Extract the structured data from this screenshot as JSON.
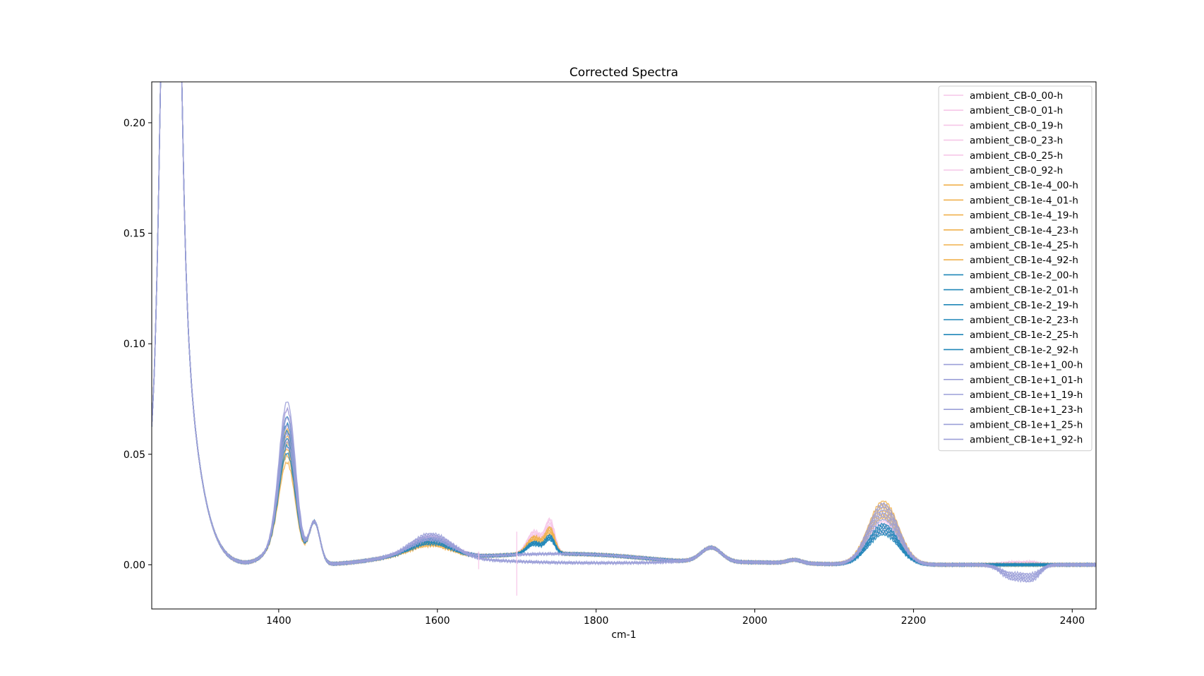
{
  "chart_data": {
    "type": "line",
    "title": "Corrected Spectra",
    "xlabel": "cm-1",
    "ylabel": "",
    "xlim": [
      1240,
      2430
    ],
    "ylim": [
      -0.02,
      0.2185
    ],
    "xticks": [
      1400,
      1600,
      1800,
      2000,
      2200,
      2400
    ],
    "yticks": [
      0.0,
      0.05,
      0.1,
      0.15,
      0.2
    ],
    "xtick_labels": [
      "1400",
      "1600",
      "1800",
      "2000",
      "2200",
      "2400"
    ],
    "ytick_labels": [
      "0.00",
      "0.05",
      "0.10",
      "0.15",
      "0.20"
    ],
    "grid": false,
    "legend_position": "top-right",
    "groups": [
      {
        "color": "#f6c6e8",
        "s1410": 0.058,
        "s1595": 0.009,
        "s2160": 0.017,
        "bump1720": 0.013,
        "s2330": 0.001,
        "names": [
          "ambient_CB-0_00-h",
          "ambient_CB-0_01-h",
          "ambient_CB-0_19-h",
          "ambient_CB-0_23-h",
          "ambient_CB-0_25-h",
          "ambient_CB-0_92-h"
        ]
      },
      {
        "color": "#f0b04c",
        "s1410": 0.05,
        "s1595": 0.007,
        "s2160": 0.025,
        "bump1720": 0.01,
        "s2330": 0.0,
        "names": [
          "ambient_CB-1e-4_00-h",
          "ambient_CB-1e-4_01-h",
          "ambient_CB-1e-4_19-h",
          "ambient_CB-1e-4_23-h",
          "ambient_CB-1e-4_25-h",
          "ambient_CB-1e-4_92-h"
        ]
      },
      {
        "color": "#1f86b8",
        "s1410": 0.055,
        "s1595": 0.008,
        "s2160": 0.016,
        "bump1720": 0.007,
        "s2330": 0.0,
        "names": [
          "ambient_CB-1e-2_00-h",
          "ambient_CB-1e-2_01-h",
          "ambient_CB-1e-2_19-h",
          "ambient_CB-1e-2_23-h",
          "ambient_CB-1e-2_25-h",
          "ambient_CB-1e-2_92-h"
        ]
      },
      {
        "color": "#9b9fd8",
        "s1410": 0.061,
        "s1595": 0.01,
        "s2160": 0.024,
        "bump1720": 0.0,
        "s2330": -0.006,
        "names": [
          "ambient_CB-1e+1_00-h",
          "ambient_CB-1e+1_01-h",
          "ambient_CB-1e+1_19-h",
          "ambient_CB-1e+1_23-h",
          "ambient_CB-1e+1_25-h",
          "ambient_CB-1e+1_92-h"
        ]
      }
    ]
  }
}
